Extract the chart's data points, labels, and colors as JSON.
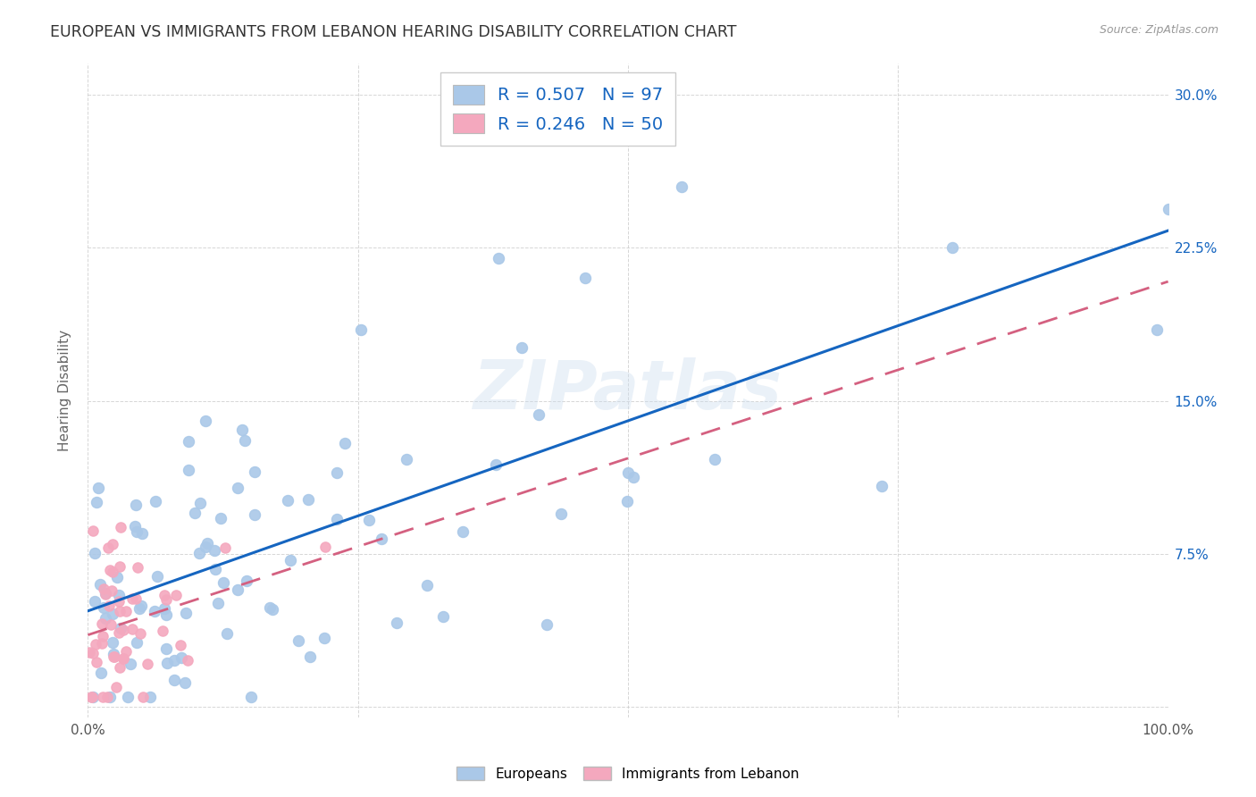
{
  "title": "EUROPEAN VS IMMIGRANTS FROM LEBANON HEARING DISABILITY CORRELATION CHART",
  "source": "Source: ZipAtlas.com",
  "ylabel": "Hearing Disability",
  "watermark": "ZIPatlas",
  "xlim": [
    0.0,
    1.0
  ],
  "ylim": [
    -0.005,
    0.315
  ],
  "europeans_R": 0.507,
  "europeans_N": 97,
  "lebanon_R": 0.246,
  "lebanon_N": 50,
  "european_color": "#aac8e8",
  "lebanon_color": "#f4a8be",
  "trendline_european_color": "#1565c0",
  "trendline_lebanon_color": "#d46080",
  "background_color": "#ffffff",
  "grid_color": "#cccccc",
  "title_fontsize": 12.5,
  "label_fontsize": 11,
  "tick_fontsize": 11,
  "right_tick_color": "#1565c0"
}
